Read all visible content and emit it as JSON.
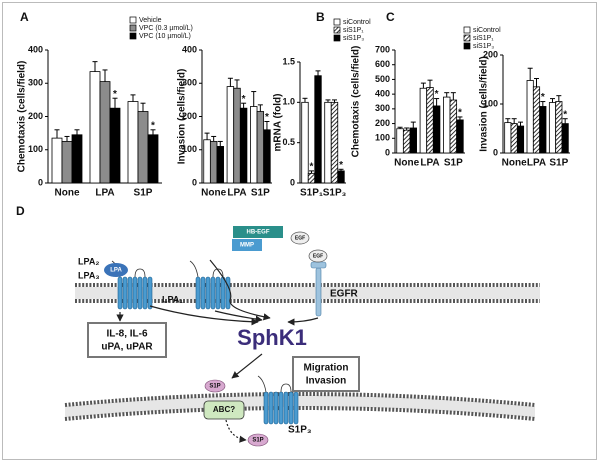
{
  "chart_data": [
    {
      "type": "bar",
      "panel": "A",
      "ylabel": "Chemotaxis (cells/field)",
      "categories": [
        "None",
        "LPA",
        "S1P"
      ],
      "ylim": [
        0,
        400
      ],
      "yticks": [
        0,
        100,
        200,
        300,
        400
      ],
      "legend": "top-right",
      "series": [
        {
          "name": "Vehicle",
          "color": "#ffffff",
          "values": [
            135,
            335,
            245
          ],
          "errors": [
            25,
            30,
            20
          ]
        },
        {
          "name": "VPC (0.3 µmol/L)",
          "color": "#8c8c8c",
          "values": [
            125,
            305,
            215
          ],
          "errors": [
            15,
            35,
            25
          ]
        },
        {
          "name": "VPC (10 µmol/L)",
          "color": "#000000",
          "values": [
            145,
            225,
            145
          ],
          "errors": [
            15,
            30,
            15
          ],
          "labels": [
            null,
            "*",
            "*"
          ]
        }
      ]
    },
    {
      "type": "bar",
      "ylabel": "Invasion (cells/field)",
      "categories": [
        "None",
        "LPA",
        "S1P"
      ],
      "ylim": [
        0,
        400
      ],
      "yticks": [
        0,
        100,
        200,
        300,
        400
      ],
      "series": [
        {
          "color": "#ffffff",
          "values": [
            130,
            290,
            230
          ],
          "errors": [
            20,
            25,
            45
          ]
        },
        {
          "color": "#8c8c8c",
          "values": [
            125,
            285,
            215
          ],
          "errors": [
            15,
            25,
            20
          ]
        },
        {
          "color": "#000000",
          "values": [
            110,
            225,
            160
          ],
          "errors": [
            15,
            15,
            25
          ],
          "labels": [
            null,
            "*",
            "*"
          ]
        }
      ]
    },
    {
      "type": "bar",
      "panel": "B",
      "ylabel": "mRNA (fold)",
      "categories": [
        "S1P₁",
        "S1P₃"
      ],
      "ylim": [
        0,
        1.5
      ],
      "yticks": [
        0,
        0.5,
        {
          "value": 1,
          "label": "1.0"
        },
        1.5
      ],
      "legend": "top-right",
      "series": [
        {
          "name": "siControl",
          "color": "#ffffff",
          "values": [
            1.0,
            1.0
          ],
          "errors": [
            0.05,
            0.03
          ]
        },
        {
          "name": "siS1P₁",
          "color": "#ffffff",
          "fill": "hatch",
          "values": [
            0.12,
            1.0
          ],
          "errors": [
            0.03,
            0.03
          ],
          "labels": [
            "*",
            null
          ]
        },
        {
          "name": "siS1P₃",
          "color": "#000000",
          "values": [
            1.33,
            0.15
          ],
          "errors": [
            0.06,
            0.02
          ],
          "labels": [
            null,
            "*"
          ]
        }
      ]
    },
    {
      "type": "bar",
      "panel": "C",
      "ylabel": "Chemotaxis (cells/field)",
      "categories": [
        "None",
        "LPA",
        "S1P"
      ],
      "ylim": [
        0,
        700
      ],
      "yticks": [
        0,
        100,
        200,
        300,
        400,
        500,
        600,
        700
      ],
      "legend": "top-right",
      "series": [
        {
          "name": "siControl",
          "color": "#ffffff",
          "values": [
            165,
            440,
            380
          ],
          "errors": [
            10,
            35,
            30
          ]
        },
        {
          "name": "siS1P₁",
          "color": "#ffffff",
          "fill": "hatch",
          "values": [
            155,
            445,
            360
          ],
          "errors": [
            15,
            50,
            50
          ]
        },
        {
          "name": "siS1P₃",
          "color": "#000000",
          "values": [
            170,
            320,
            225
          ],
          "errors": [
            40,
            50,
            20
          ],
          "labels": [
            null,
            "*",
            "*"
          ]
        }
      ]
    },
    {
      "type": "bar",
      "ylabel": "Invasion (cells/field)",
      "categories": [
        "None",
        "LPA",
        "S1P"
      ],
      "ylim": [
        0,
        200
      ],
      "yticks": [
        0,
        100,
        200
      ],
      "series": [
        {
          "color": "#ffffff",
          "values": [
            62,
            148,
            103
          ],
          "errors": [
            8,
            25,
            8
          ]
        },
        {
          "color": "#ffffff",
          "fill": "hatch",
          "values": [
            60,
            135,
            105
          ],
          "errors": [
            10,
            17,
            12
          ]
        },
        {
          "color": "#000000",
          "values": [
            55,
            95,
            60
          ],
          "errors": [
            8,
            10,
            10
          ],
          "labels": [
            null,
            "*",
            "*"
          ]
        }
      ]
    }
  ],
  "diagram": {
    "panel": "D",
    "nodes": [
      {
        "label": "LPA₂"
      },
      {
        "label": "LPA₃"
      },
      {
        "label": "LPA"
      },
      {
        "label": "LPA₁"
      },
      {
        "label": "HB-EGF"
      },
      {
        "label": "MMP"
      },
      {
        "label": "EGF"
      },
      {
        "label": "EGF"
      },
      {
        "label": "EGFR"
      },
      {
        "label": "IL-8, IL-6"
      },
      {
        "label": "uPA, uPAR"
      },
      {
        "label": "SphK1"
      },
      {
        "label": "Migration"
      },
      {
        "label": "Invasion"
      },
      {
        "label": "S1P"
      },
      {
        "label": "ABC?"
      },
      {
        "label": "S1P"
      },
      {
        "label": "S1P₃"
      }
    ]
  }
}
